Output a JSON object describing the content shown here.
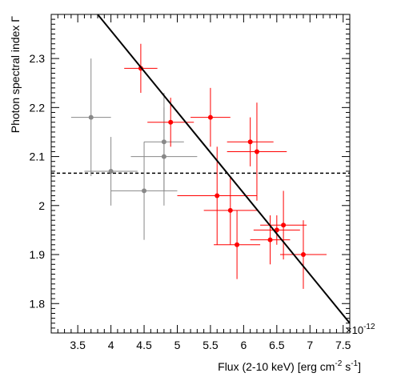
{
  "chart_data": {
    "type": "scatter",
    "xlabel": "Flux (2-10 keV) [erg cm",
    "xlabel_sup1": "-2",
    "xlabel_mid": " s",
    "xlabel_sup2": "-1",
    "xlabel_end": "]",
    "ylabel": "Photon spectral index Γ",
    "x_exponent_base": "×10",
    "x_exponent_power": "-12",
    "xlim": [
      3.1,
      7.6
    ],
    "ylim": [
      1.74,
      2.39
    ],
    "xticks": [
      "3.5",
      "4",
      "4.5",
      "5",
      "5.5",
      "6",
      "6.5",
      "7",
      "7.5"
    ],
    "xtick_values": [
      3.5,
      4,
      4.5,
      5,
      5.5,
      6,
      6.5,
      7,
      7.5
    ],
    "yticks": [
      "1.8",
      "1.9",
      "2",
      "2.1",
      "2.2",
      "2.3"
    ],
    "ytick_values": [
      1.8,
      1.9,
      2.0,
      2.1,
      2.2,
      2.3
    ],
    "grid": false,
    "series": [
      {
        "color": "#888888",
        "points": [
          {
            "x": 3.7,
            "y": 2.18,
            "xerr": 0.3,
            "yerr": 0.12
          },
          {
            "x": 4.0,
            "y": 2.07,
            "xerr": 0.4,
            "yerr": 0.07
          },
          {
            "x": 4.5,
            "y": 2.03,
            "xerr": 0.5,
            "yerr": 0.1
          },
          {
            "x": 4.8,
            "y": 2.13,
            "xerr": 0.3,
            "yerr": 0.1
          },
          {
            "x": 4.8,
            "y": 2.1,
            "xerr": 0.5,
            "yerr": 0.1
          }
        ]
      },
      {
        "color": "#ff0000",
        "points": [
          {
            "x": 4.45,
            "y": 2.28,
            "xerr": 0.25,
            "yerr": 0.05
          },
          {
            "x": 4.9,
            "y": 2.17,
            "xerr": 0.35,
            "yerr": 0.05
          },
          {
            "x": 5.5,
            "y": 2.18,
            "xerr": 0.3,
            "yerr": 0.06
          },
          {
            "x": 5.6,
            "y": 2.02,
            "xerr": 0.6,
            "yerr": 0.1
          },
          {
            "x": 5.8,
            "y": 1.99,
            "xerr": 0.4,
            "yerr": 0.07
          },
          {
            "x": 5.9,
            "y": 1.92,
            "xerr": 0.35,
            "yerr": 0.07
          },
          {
            "x": 6.1,
            "y": 2.13,
            "xerr": 0.35,
            "yerr": 0.05
          },
          {
            "x": 6.2,
            "y": 2.11,
            "xerr": 0.45,
            "yerr": 0.1
          },
          {
            "x": 6.4,
            "y": 1.93,
            "xerr": 0.3,
            "yerr": 0.05
          },
          {
            "x": 6.5,
            "y": 1.95,
            "xerr": 0.35,
            "yerr": 0.03
          },
          {
            "x": 6.6,
            "y": 1.96,
            "xerr": 0.35,
            "yerr": 0.07
          },
          {
            "x": 6.9,
            "y": 1.9,
            "xerr": 0.35,
            "yerr": 0.07
          }
        ]
      }
    ],
    "fit_line": {
      "style": "solid",
      "color": "#000000",
      "points": [
        [
          3.8,
          2.39
        ],
        [
          7.6,
          1.76
        ]
      ]
    },
    "constant_line": {
      "style": "dashed",
      "color": "#000000",
      "y": 2.066
    }
  }
}
